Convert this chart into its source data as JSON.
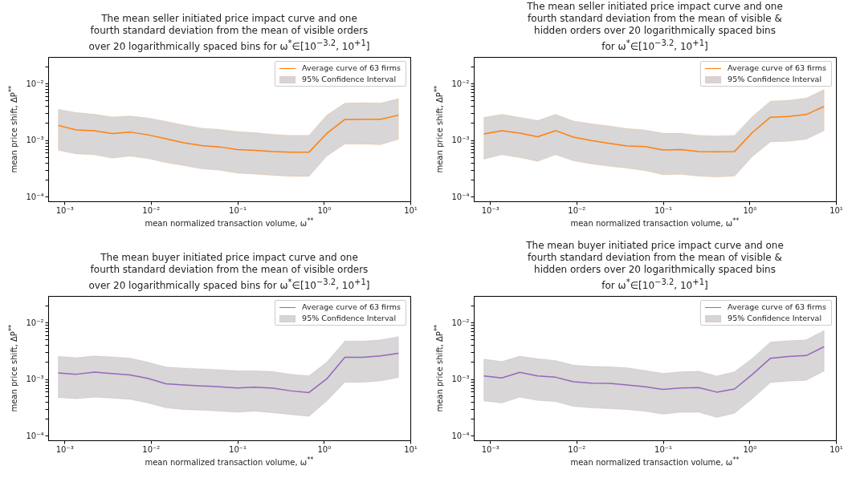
{
  "chart_data": [
    {
      "type": "line",
      "marker": "none",
      "title": "The mean seller initiated price impact curve and one\nfourth standard deviation from the mean of visible orders\nover 20 logarithmically spaced bins for ω$^{*}$∈[10$^{−3.2}$, 10$^{+1}$]",
      "xlabel": "mean normalized transaction volume, ω$^{**}$",
      "ylabel": "mean price shift, ΔP$^{**}$",
      "log": "xy",
      "legend": "top right",
      "annotations": [
        "95% Confidence Interval"
      ],
      "xlim": [
        0.00065,
        10
      ],
      "ylim": [
        8.3e-05,
        0.0295
      ],
      "xticks": [
        {
          "value": 0.001,
          "label": "10⁻³"
        },
        {
          "value": 0.01,
          "label": "10⁻²"
        },
        {
          "value": 0.1,
          "label": "10⁻¹"
        },
        {
          "value": 1,
          "label": "10⁰"
        },
        {
          "value": 10,
          "label": "10¹"
        }
      ],
      "yticks": [
        {
          "value": 0.0001,
          "label": "10⁻⁴"
        },
        {
          "value": 0.0002,
          "label": null
        },
        {
          "value": 0.0003,
          "label": null
        },
        {
          "value": 0.0004,
          "label": null
        },
        {
          "value": 0.0005,
          "label": null
        },
        {
          "value": 0.0006,
          "label": null
        },
        {
          "value": 0.0007,
          "label": null
        },
        {
          "value": 0.0008,
          "label": null
        },
        {
          "value": 0.0009,
          "label": null
        },
        {
          "value": 0.001,
          "label": "10⁻³"
        },
        {
          "value": 0.002,
          "label": null
        },
        {
          "value": 0.003,
          "label": null
        },
        {
          "value": 0.004,
          "label": null
        },
        {
          "value": 0.005,
          "label": null
        },
        {
          "value": 0.006,
          "label": null
        },
        {
          "value": 0.007,
          "label": null
        },
        {
          "value": 0.008,
          "label": null
        },
        {
          "value": 0.009,
          "label": null
        },
        {
          "value": 0.01,
          "label": "10⁻²"
        },
        {
          "value": 0.02,
          "label": null
        }
      ],
      "x": [
        0.00085,
        0.00137,
        0.00221,
        0.00356,
        0.00573,
        0.00923,
        0.0149,
        0.0239,
        0.0385,
        0.0621,
        0.1,
        0.161,
        0.259,
        0.418,
        0.673,
        1.08,
        1.75,
        2.81,
        4.53,
        7.3
      ],
      "series": [
        {
          "name": "Average curve of 63 firms",
          "color": "#ff7f0e",
          "values": [
            0.00182,
            0.00151,
            0.00147,
            0.00131,
            0.00139,
            0.00124,
            0.00106,
            0.0009,
            0.0008,
            0.00076,
            0.00068,
            0.00066,
            0.00063,
            0.00061,
            0.00061,
            0.00131,
            0.00232,
            0.00234,
            0.00234,
            0.00276
          ],
          "lower": [
            0.00066,
            0.00057,
            0.00055,
            0.00048,
            0.00052,
            0.00047,
            0.0004,
            0.000355,
            0.00031,
            0.000294,
            0.000261,
            0.00025,
            0.000237,
            0.000229,
            0.000229,
            0.00052,
            0.00085,
            0.00085,
            0.00083,
            0.00103
          ],
          "upper": [
            0.0035,
            0.00308,
            0.00288,
            0.00258,
            0.00267,
            0.00247,
            0.00215,
            0.00186,
            0.00163,
            0.00155,
            0.00142,
            0.00136,
            0.00127,
            0.00122,
            0.00122,
            0.00276,
            0.00451,
            0.00461,
            0.00451,
            0.00543
          ]
        }
      ]
    },
    {
      "type": "line",
      "marker": "none",
      "title": "The mean seller initiated price impact curve and one\nfourth standard deviation from the mean of visible &\nhidden orders  over 20 logarithmically spaced bins\nfor ω$^{*}$∈[10$^{−3.2}$, 10$^{+1}$]",
      "xlabel": "mean normalized transaction volume, ω$^{**}$",
      "ylabel": "mean price shift, ΔP$^{**}$",
      "log": "xy",
      "legend": "top right",
      "annotations": [
        "95% Confidence Interval"
      ],
      "xlim": [
        0.00065,
        10
      ],
      "ylim": [
        8.3e-05,
        0.0295
      ],
      "xticks": [
        {
          "value": 0.001,
          "label": "10⁻³"
        },
        {
          "value": 0.01,
          "label": "10⁻²"
        },
        {
          "value": 0.1,
          "label": "10⁻¹"
        },
        {
          "value": 1,
          "label": "10⁰"
        },
        {
          "value": 10,
          "label": "10¹"
        }
      ],
      "yticks": [
        {
          "value": 0.0001,
          "label": "10⁻⁴"
        },
        {
          "value": 0.0002,
          "label": null
        },
        {
          "value": 0.0003,
          "label": null
        },
        {
          "value": 0.0004,
          "label": null
        },
        {
          "value": 0.0005,
          "label": null
        },
        {
          "value": 0.0006,
          "label": null
        },
        {
          "value": 0.0007,
          "label": null
        },
        {
          "value": 0.0008,
          "label": null
        },
        {
          "value": 0.0009,
          "label": null
        },
        {
          "value": 0.001,
          "label": "10⁻³"
        },
        {
          "value": 0.002,
          "label": null
        },
        {
          "value": 0.003,
          "label": null
        },
        {
          "value": 0.004,
          "label": null
        },
        {
          "value": 0.005,
          "label": null
        },
        {
          "value": 0.006,
          "label": null
        },
        {
          "value": 0.007,
          "label": null
        },
        {
          "value": 0.008,
          "label": null
        },
        {
          "value": 0.009,
          "label": null
        },
        {
          "value": 0.01,
          "label": "10⁻²"
        },
        {
          "value": 0.02,
          "label": null
        }
      ],
      "x": [
        0.00085,
        0.00137,
        0.00221,
        0.00356,
        0.00573,
        0.00923,
        0.0149,
        0.0239,
        0.0385,
        0.0621,
        0.1,
        0.161,
        0.259,
        0.418,
        0.673,
        1.08,
        1.75,
        2.81,
        4.53,
        7.3
      ],
      "series": [
        {
          "name": "Average curve of 63 firms",
          "color": "#ff7f0e",
          "values": [
            0.00129,
            0.00147,
            0.00133,
            0.00115,
            0.00147,
            0.00113,
            0.00098,
            0.00088,
            0.00079,
            0.00077,
            0.00067,
            0.00068,
            0.00063,
            0.00062,
            0.00063,
            0.00136,
            0.00254,
            0.00262,
            0.00283,
            0.00394
          ],
          "lower": [
            0.00046,
            0.00055,
            0.00049,
            0.00042,
            0.00055,
            0.00043,
            0.00038,
            0.000345,
            0.00032,
            0.00029,
            0.000243,
            0.000248,
            0.00023,
            0.000223,
            0.00023,
            0.00051,
            0.00093,
            0.00095,
            0.00103,
            0.00147
          ],
          "upper": [
            0.00254,
            0.00286,
            0.00254,
            0.00223,
            0.00286,
            0.00218,
            0.00195,
            0.00179,
            0.0016,
            0.00152,
            0.00133,
            0.00133,
            0.00122,
            0.00119,
            0.00122,
            0.00262,
            0.0049,
            0.00507,
            0.00553,
            0.00785
          ]
        }
      ]
    },
    {
      "type": "line",
      "marker": "none",
      "title": "The mean buyer initiated price impact curve and one\nfourth standard deviation from the mean of visible orders\nover 20 logarithmically spaced bins for ω$^{*}$∈[10$^{−3.2}$, 10$^{+1}$]",
      "xlabel": "mean normalized transaction volume, ω$^{**}$",
      "ylabel": "mean price shift, ΔP$^{**}$",
      "log": "xy",
      "legend": "top right",
      "annotations": [
        "95% Confidence Interval"
      ],
      "xlim": [
        0.00065,
        10
      ],
      "ylim": [
        8.3e-05,
        0.0295
      ],
      "xticks": [
        {
          "value": 0.001,
          "label": "10⁻³"
        },
        {
          "value": 0.01,
          "label": "10⁻²"
        },
        {
          "value": 0.1,
          "label": "10⁻¹"
        },
        {
          "value": 1,
          "label": "10⁰"
        },
        {
          "value": 10,
          "label": "10¹"
        }
      ],
      "yticks": [
        {
          "value": 0.0001,
          "label": "10⁻⁴"
        },
        {
          "value": 0.0002,
          "label": null
        },
        {
          "value": 0.0003,
          "label": null
        },
        {
          "value": 0.0004,
          "label": null
        },
        {
          "value": 0.0005,
          "label": null
        },
        {
          "value": 0.0006,
          "label": null
        },
        {
          "value": 0.0007,
          "label": null
        },
        {
          "value": 0.0008,
          "label": null
        },
        {
          "value": 0.0009,
          "label": null
        },
        {
          "value": 0.001,
          "label": "10⁻³"
        },
        {
          "value": 0.002,
          "label": null
        },
        {
          "value": 0.003,
          "label": null
        },
        {
          "value": 0.004,
          "label": null
        },
        {
          "value": 0.005,
          "label": null
        },
        {
          "value": 0.006,
          "label": null
        },
        {
          "value": 0.007,
          "label": null
        },
        {
          "value": 0.008,
          "label": null
        },
        {
          "value": 0.009,
          "label": null
        },
        {
          "value": 0.01,
          "label": "10⁻²"
        },
        {
          "value": 0.02,
          "label": null
        }
      ],
      "x": [
        0.00085,
        0.00137,
        0.00221,
        0.00356,
        0.00573,
        0.00923,
        0.0149,
        0.0239,
        0.0385,
        0.0621,
        0.1,
        0.161,
        0.259,
        0.418,
        0.673,
        1.08,
        1.75,
        2.81,
        4.53,
        7.3
      ],
      "series": [
        {
          "name": "Average curve of 63 firms",
          "color": "#9467bd",
          "values": [
            0.00129,
            0.00122,
            0.00133,
            0.00126,
            0.00119,
            0.00103,
            0.00083,
            0.00079,
            0.00076,
            0.00073,
            0.0007,
            0.00072,
            0.00069,
            0.00062,
            0.00058,
            0.00101,
            0.00243,
            0.00243,
            0.00257,
            0.00286
          ],
          "lower": [
            0.00047,
            0.00045,
            0.00048,
            0.00046,
            0.00044,
            0.00038,
            0.00031,
            0.00029,
            0.000283,
            0.00027,
            0.00026,
            0.00027,
            0.000254,
            0.000235,
            0.00022,
            0.00041,
            0.00088,
            0.00088,
            0.00093,
            0.00107
          ],
          "upper": [
            0.00254,
            0.0024,
            0.00257,
            0.00248,
            0.00235,
            0.002,
            0.00164,
            0.00157,
            0.00152,
            0.00147,
            0.00141,
            0.00141,
            0.00136,
            0.00122,
            0.00115,
            0.002,
            0.00469,
            0.00469,
            0.00496,
            0.00565
          ]
        }
      ]
    },
    {
      "type": "line",
      "marker": "none",
      "title": "The mean buyer initiated price impact curve and one\nfourth standard deviation from the mean of visible &\nhidden orders  over 20 logarithmically spaced bins\nfor ω$^{*}$∈[10$^{−3.2}$, 10$^{+1}$]",
      "xlabel": "mean normalized transaction volume, ω$^{**}$",
      "ylabel": "mean price shift, ΔP$^{**}$",
      "log": "xy",
      "legend": "top right",
      "annotations": [
        "95% Confidence Interval"
      ],
      "xlim": [
        0.00065,
        10
      ],
      "ylim": [
        8.3e-05,
        0.0295
      ],
      "xticks": [
        {
          "value": 0.001,
          "label": "10⁻³"
        },
        {
          "value": 0.01,
          "label": "10⁻²"
        },
        {
          "value": 0.1,
          "label": "10⁻¹"
        },
        {
          "value": 1,
          "label": "10⁰"
        },
        {
          "value": 10,
          "label": "10¹"
        }
      ],
      "yticks": [
        {
          "value": 0.0001,
          "label": "10⁻⁴"
        },
        {
          "value": 0.0002,
          "label": null
        },
        {
          "value": 0.0003,
          "label": null
        },
        {
          "value": 0.0004,
          "label": null
        },
        {
          "value": 0.0005,
          "label": null
        },
        {
          "value": 0.0006,
          "label": null
        },
        {
          "value": 0.0007,
          "label": null
        },
        {
          "value": 0.0008,
          "label": null
        },
        {
          "value": 0.0009,
          "label": null
        },
        {
          "value": 0.001,
          "label": "10⁻³"
        },
        {
          "value": 0.002,
          "label": null
        },
        {
          "value": 0.003,
          "label": null
        },
        {
          "value": 0.004,
          "label": null
        },
        {
          "value": 0.005,
          "label": null
        },
        {
          "value": 0.006,
          "label": null
        },
        {
          "value": 0.007,
          "label": null
        },
        {
          "value": 0.008,
          "label": null
        },
        {
          "value": 0.009,
          "label": null
        },
        {
          "value": 0.01,
          "label": "10⁻²"
        },
        {
          "value": 0.02,
          "label": null
        }
      ],
      "x": [
        0.00085,
        0.00137,
        0.00221,
        0.00356,
        0.00573,
        0.00923,
        0.0149,
        0.0239,
        0.0385,
        0.0621,
        0.1,
        0.161,
        0.259,
        0.418,
        0.673,
        1.08,
        1.75,
        2.81,
        4.53,
        7.3
      ],
      "series": [
        {
          "name": "Average curve of 63 firms",
          "color": "#9467bd",
          "values": [
            0.00114,
            0.00105,
            0.00132,
            0.00114,
            0.00108,
            0.0009,
            0.00085,
            0.00084,
            0.00079,
            0.00073,
            0.00066,
            0.0007,
            0.00071,
            0.00059,
            0.00067,
            0.00121,
            0.00234,
            0.00252,
            0.00261,
            0.00375
          ],
          "lower": [
            0.00041,
            0.00038,
            0.00048,
            0.00042,
            0.0004,
            0.00033,
            0.00031,
            0.0003,
            0.00029,
            0.00027,
            0.00024,
            0.00026,
            0.00026,
            0.00021,
            0.00025,
            0.00045,
            0.00087,
            0.00092,
            0.00095,
            0.00139
          ],
          "upper": [
            0.00226,
            0.00205,
            0.00255,
            0.00229,
            0.00214,
            0.00177,
            0.00168,
            0.00166,
            0.00159,
            0.00142,
            0.00127,
            0.00135,
            0.00138,
            0.00114,
            0.00135,
            0.00234,
            0.00453,
            0.00478,
            0.00494,
            0.00726
          ]
        }
      ]
    }
  ]
}
